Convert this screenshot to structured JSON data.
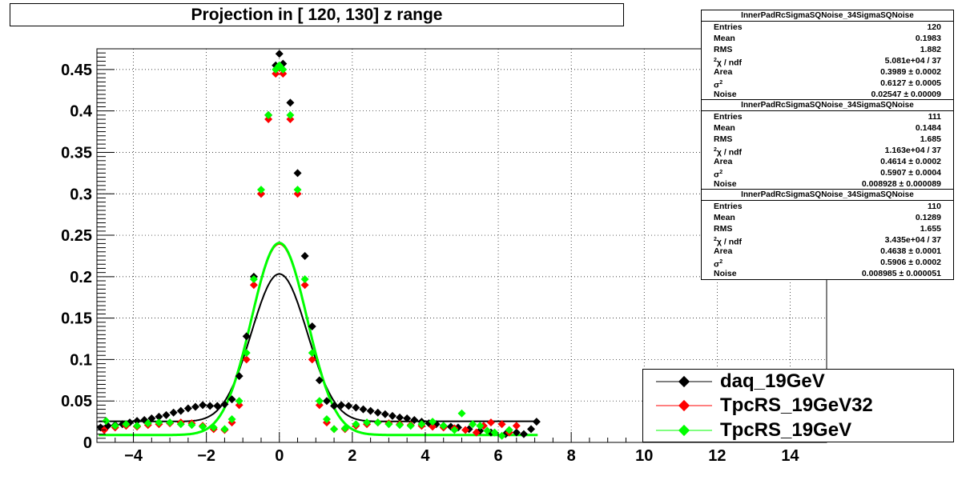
{
  "title": "Projection in [ 120, 130] z range",
  "chart_data": {
    "type": "scatter",
    "xlim": [
      -5,
      15
    ],
    "ylim": [
      0,
      0.475
    ],
    "grid": true,
    "x_ticks": [
      -4,
      -2,
      0,
      2,
      4,
      6,
      8,
      10,
      12,
      14
    ],
    "x_tick_labels": [
      "−4",
      "−2",
      "0",
      "2",
      "4",
      "6",
      "8",
      "10",
      "12",
      "14"
    ],
    "y_ticks": [
      0,
      0.05,
      0.1,
      0.15,
      0.2,
      0.25,
      0.3,
      0.35,
      0.4,
      0.45
    ],
    "y_tick_labels": [
      "0",
      "0.05",
      "0.1",
      "0.15",
      "0.2",
      "0.25",
      "0.3",
      "0.35",
      "0.4",
      "0.45"
    ],
    "legend_position": "bottom-right",
    "series": [
      {
        "name": "daq_19GeV",
        "color": "#000000",
        "fit": {
          "area": 0.3989,
          "sigma2": 0.6127,
          "noise": 0.02547
        },
        "points": [
          [
            -4.9,
            0.018
          ],
          [
            -4.7,
            0.02
          ],
          [
            -4.5,
            0.021
          ],
          [
            -4.3,
            0.022
          ],
          [
            -4.1,
            0.024
          ],
          [
            -3.9,
            0.026
          ],
          [
            -3.7,
            0.027
          ],
          [
            -3.5,
            0.029
          ],
          [
            -3.3,
            0.031
          ],
          [
            -3.1,
            0.033
          ],
          [
            -2.9,
            0.036
          ],
          [
            -2.7,
            0.038
          ],
          [
            -2.5,
            0.041
          ],
          [
            -2.3,
            0.043
          ],
          [
            -2.1,
            0.045
          ],
          [
            -1.9,
            0.044
          ],
          [
            -1.7,
            0.044
          ],
          [
            -1.5,
            0.046
          ],
          [
            -1.3,
            0.052
          ],
          [
            -1.1,
            0.08
          ],
          [
            -0.9,
            0.128
          ],
          [
            -0.7,
            0.2
          ],
          [
            -0.5,
            0.3
          ],
          [
            -0.3,
            0.395
          ],
          [
            -0.1,
            0.455
          ],
          [
            0.0,
            0.469
          ],
          [
            0.1,
            0.457
          ],
          [
            0.3,
            0.41
          ],
          [
            0.5,
            0.325
          ],
          [
            0.7,
            0.225
          ],
          [
            0.9,
            0.14
          ],
          [
            1.1,
            0.075
          ],
          [
            1.3,
            0.05
          ],
          [
            1.5,
            0.044
          ],
          [
            1.7,
            0.045
          ],
          [
            1.9,
            0.044
          ],
          [
            2.1,
            0.042
          ],
          [
            2.3,
            0.04
          ],
          [
            2.5,
            0.038
          ],
          [
            2.7,
            0.036
          ],
          [
            2.9,
            0.034
          ],
          [
            3.1,
            0.032
          ],
          [
            3.3,
            0.03
          ],
          [
            3.5,
            0.029
          ],
          [
            3.7,
            0.027
          ],
          [
            3.9,
            0.025
          ],
          [
            4.1,
            0.023
          ],
          [
            4.3,
            0.022
          ],
          [
            4.5,
            0.02
          ],
          [
            4.7,
            0.019
          ],
          [
            4.9,
            0.018
          ],
          [
            5.2,
            0.016
          ],
          [
            5.5,
            0.014
          ],
          [
            5.8,
            0.012
          ],
          [
            6.2,
            0.01
          ],
          [
            6.5,
            0.012
          ],
          [
            6.7,
            0.01
          ],
          [
            6.9,
            0.016
          ],
          [
            7.05,
            0.025
          ]
        ]
      },
      {
        "name": "TpcRS_19GeV32",
        "color": "#ff0000",
        "fit": {
          "area": 0.4614,
          "sigma2": 0.5907,
          "noise": 0.008928
        },
        "points": [
          [
            -4.8,
            0.015
          ],
          [
            -4.5,
            0.018
          ],
          [
            -4.2,
            0.02
          ],
          [
            -3.9,
            0.019
          ],
          [
            -3.6,
            0.021
          ],
          [
            -3.3,
            0.022
          ],
          [
            -3.0,
            0.023
          ],
          [
            -2.7,
            0.024
          ],
          [
            -2.4,
            0.023
          ],
          [
            -2.1,
            0.02
          ],
          [
            -1.8,
            0.016
          ],
          [
            -1.5,
            0.015
          ],
          [
            -1.3,
            0.024
          ],
          [
            -1.1,
            0.045
          ],
          [
            -0.9,
            0.1
          ],
          [
            -0.7,
            0.19
          ],
          [
            -0.5,
            0.3
          ],
          [
            -0.3,
            0.39
          ],
          [
            -0.1,
            0.445
          ],
          [
            0.0,
            0.452
          ],
          [
            0.1,
            0.445
          ],
          [
            0.3,
            0.39
          ],
          [
            0.5,
            0.3
          ],
          [
            0.7,
            0.19
          ],
          [
            0.9,
            0.1
          ],
          [
            1.1,
            0.045
          ],
          [
            1.3,
            0.024
          ],
          [
            1.5,
            0.016
          ],
          [
            1.8,
            0.016
          ],
          [
            2.1,
            0.02
          ],
          [
            2.4,
            0.022
          ],
          [
            2.7,
            0.024
          ],
          [
            3.0,
            0.023
          ],
          [
            3.3,
            0.022
          ],
          [
            3.6,
            0.021
          ],
          [
            3.9,
            0.02
          ],
          [
            4.2,
            0.019
          ],
          [
            4.5,
            0.018
          ],
          [
            4.8,
            0.017
          ],
          [
            5.1,
            0.015
          ],
          [
            5.4,
            0.012
          ],
          [
            5.6,
            0.02
          ],
          [
            5.8,
            0.024
          ],
          [
            6.1,
            0.022
          ],
          [
            6.3,
            0.012
          ],
          [
            6.5,
            0.02
          ]
        ]
      },
      {
        "name": "TpcRS_19GeV",
        "color": "#00ff00",
        "fit": {
          "area": 0.4638,
          "sigma2": 0.5906,
          "noise": 0.008985
        },
        "points": [
          [
            -4.75,
            0.026
          ],
          [
            -4.5,
            0.02
          ],
          [
            -4.2,
            0.022
          ],
          [
            -3.9,
            0.02
          ],
          [
            -3.6,
            0.023
          ],
          [
            -3.3,
            0.024
          ],
          [
            -3.0,
            0.024
          ],
          [
            -2.7,
            0.022
          ],
          [
            -2.4,
            0.021
          ],
          [
            -2.1,
            0.019
          ],
          [
            -1.8,
            0.018
          ],
          [
            -1.5,
            0.016
          ],
          [
            -1.3,
            0.028
          ],
          [
            -1.1,
            0.05
          ],
          [
            -0.9,
            0.108
          ],
          [
            -0.7,
            0.197
          ],
          [
            -0.5,
            0.305
          ],
          [
            -0.3,
            0.395
          ],
          [
            -0.1,
            0.45
          ],
          [
            0.0,
            0.455
          ],
          [
            0.1,
            0.45
          ],
          [
            0.3,
            0.395
          ],
          [
            0.5,
            0.305
          ],
          [
            0.7,
            0.197
          ],
          [
            0.9,
            0.108
          ],
          [
            1.1,
            0.05
          ],
          [
            1.3,
            0.028
          ],
          [
            1.5,
            0.016
          ],
          [
            1.8,
            0.017
          ],
          [
            2.1,
            0.022
          ],
          [
            2.4,
            0.024
          ],
          [
            2.7,
            0.024
          ],
          [
            3.0,
            0.022
          ],
          [
            3.3,
            0.021
          ],
          [
            3.6,
            0.02
          ],
          [
            3.9,
            0.022
          ],
          [
            4.2,
            0.025
          ],
          [
            4.5,
            0.02
          ],
          [
            4.8,
            0.015
          ],
          [
            5.0,
            0.035
          ],
          [
            5.3,
            0.022
          ],
          [
            5.5,
            0.02
          ],
          [
            5.7,
            0.014
          ],
          [
            5.9,
            0.012
          ],
          [
            6.1,
            0.008
          ],
          [
            6.3,
            0.015
          ]
        ]
      }
    ]
  },
  "stats_boxes": [
    {
      "title": "InnerPadRcSigmaSQNoise_34SigmaSQNoise",
      "rows": [
        {
          "label": "Entries",
          "value": "120"
        },
        {
          "label": "Mean",
          "value": "0.1983"
        },
        {
          "label": "RMS",
          "value": "1.882"
        },
        {
          "label": "χ / ndf",
          "label_sup": "2",
          "value": "5.081e+04 / 37"
        },
        {
          "label": "Area",
          "value": "0.3989 ± 0.0002"
        },
        {
          "label": "σ",
          "label_sup": "2",
          "value": "0.6127 ± 0.0005"
        },
        {
          "label": "Noise",
          "value": "0.02547 ± 0.00009"
        }
      ]
    },
    {
      "title": "InnerPadRcSigmaSQNoise_34SigmaSQNoise",
      "rows": [
        {
          "label": "Entries",
          "value": "111"
        },
        {
          "label": "Mean",
          "value": "0.1484"
        },
        {
          "label": "RMS",
          "value": "1.685"
        },
        {
          "label": "χ / ndf",
          "label_sup": "2",
          "value": "1.163e+04 / 37"
        },
        {
          "label": "Area",
          "value": "0.4614 ± 0.0002"
        },
        {
          "label": "σ",
          "label_sup": "2",
          "value": "0.5907 ± 0.0004"
        },
        {
          "label": "Noise",
          "value": "0.008928 ± 0.000089"
        }
      ]
    },
    {
      "title": "InnerPadRcSigmaSQNoise_34SigmaSQNoise",
      "rows": [
        {
          "label": "Entries",
          "value": "110"
        },
        {
          "label": "Mean",
          "value": "0.1289"
        },
        {
          "label": "RMS",
          "value": "1.655"
        },
        {
          "label": "χ / ndf",
          "label_sup": "2",
          "value": "3.435e+04 / 37"
        },
        {
          "label": "Area",
          "value": "0.4638 ± 0.0001"
        },
        {
          "label": "σ",
          "label_sup": "2",
          "value": "0.5906 ± 0.0002"
        },
        {
          "label": "Noise",
          "value": "0.008985 ± 0.000051"
        }
      ]
    }
  ],
  "legend": [
    {
      "label": "daq_19GeV",
      "color": "#000000"
    },
    {
      "label": "TpcRS_19GeV32",
      "color": "#ff0000"
    },
    {
      "label": "TpcRS_19GeV",
      "color": "#00ff00"
    }
  ]
}
